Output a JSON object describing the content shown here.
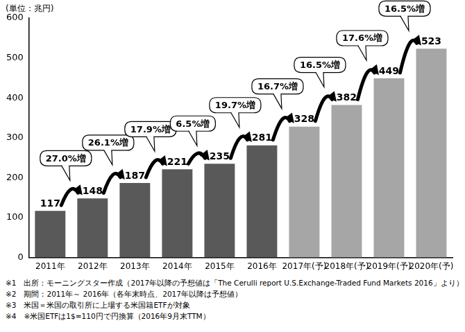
{
  "chart_data": {
    "type": "bar",
    "y_label": "(単位：兆円)",
    "categories": [
      "2011年",
      "2012年",
      "2013年",
      "2014年",
      "2015年",
      "2016年",
      "2017年(予)",
      "2018年(予)",
      "2019年(予)",
      "2020年(予)"
    ],
    "values": [
      117,
      148,
      187,
      221,
      235,
      281,
      328,
      382,
      449,
      523
    ],
    "colors": [
      "#595959",
      "#595959",
      "#595959",
      "#595959",
      "#595959",
      "#595959",
      "#a6a6a6",
      "#a6a6a6",
      "#a6a6a6",
      "#a6a6a6"
    ],
    "annotations": [
      "27.0%増",
      "26.1%増",
      "17.9%増",
      "6.5%増",
      "19.7%増",
      "16.7%増",
      "16.5%増",
      "17.6%増",
      "16.5%増"
    ],
    "notes": [
      "※1　出所：モーニングスター作成（2017年以降の予想値は「The Cerulli report U.S.Exchange-Traded Fund Markets 2016」より）",
      "※2　期間：2011年～ 2016年（各年末時点、2017年以降は予想値）",
      "※3　米国＝米国の取引所に上場する米国籍ETFが対象",
      "※4　※米国ETFは1$=110円で円換算（2016年9月末TTM）"
    ],
    "ylim": [
      0,
      600
    ],
    "yticks": [
      0,
      100,
      200,
      300,
      400,
      500,
      600
    ],
    "grid": false,
    "data_labels": true
  }
}
